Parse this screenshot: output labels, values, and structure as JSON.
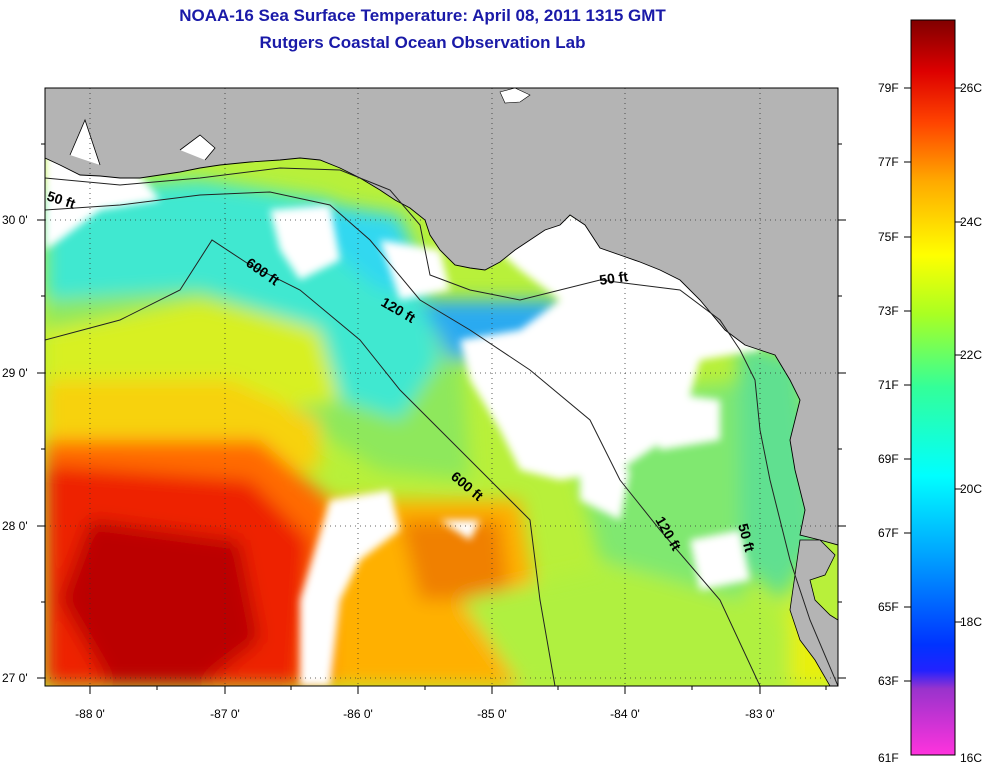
{
  "header": {
    "title": "NOAA-16 Sea Surface Temperature:  April 08, 2011 1315 GMT",
    "subtitle": "Rutgers Coastal Ocean Observation Lab"
  },
  "map": {
    "lon_range": [
      -88.33,
      -82.45
    ],
    "lat_range": [
      26.96,
      30.85
    ],
    "lon_ticks": [
      "-88 0'",
      "-87 0'",
      "-86 0'",
      "-85 0'",
      "-84 0'",
      "-83 0'"
    ],
    "lat_ticks": [
      "30 0'",
      "29 0'",
      "28 0'",
      "27 0'"
    ],
    "land_color": "#b4b4b4",
    "cloud_color": "#ffffff",
    "grid": "dotted",
    "contours": [
      {
        "label": "50 ft",
        "occurrences": 3
      },
      {
        "label": "120 ft",
        "occurrences": 2
      },
      {
        "label": "600 ft",
        "occurrences": 2
      }
    ]
  },
  "colorbar": {
    "fahrenheit_labels": [
      "79F",
      "77F",
      "75F",
      "73F",
      "71F",
      "69F",
      "67F",
      "65F",
      "63F",
      "61F"
    ],
    "celsius_labels": [
      "26C",
      "24C",
      "22C",
      "20C",
      "18C",
      "16C"
    ],
    "colors": [
      "#ff33cc",
      "#8a2be2",
      "#0000ff",
      "#00aaff",
      "#00ffff",
      "#33ff99",
      "#99ff33",
      "#ffff00",
      "#ffaa00",
      "#ff4400",
      "#e00000",
      "#800000"
    ]
  }
}
